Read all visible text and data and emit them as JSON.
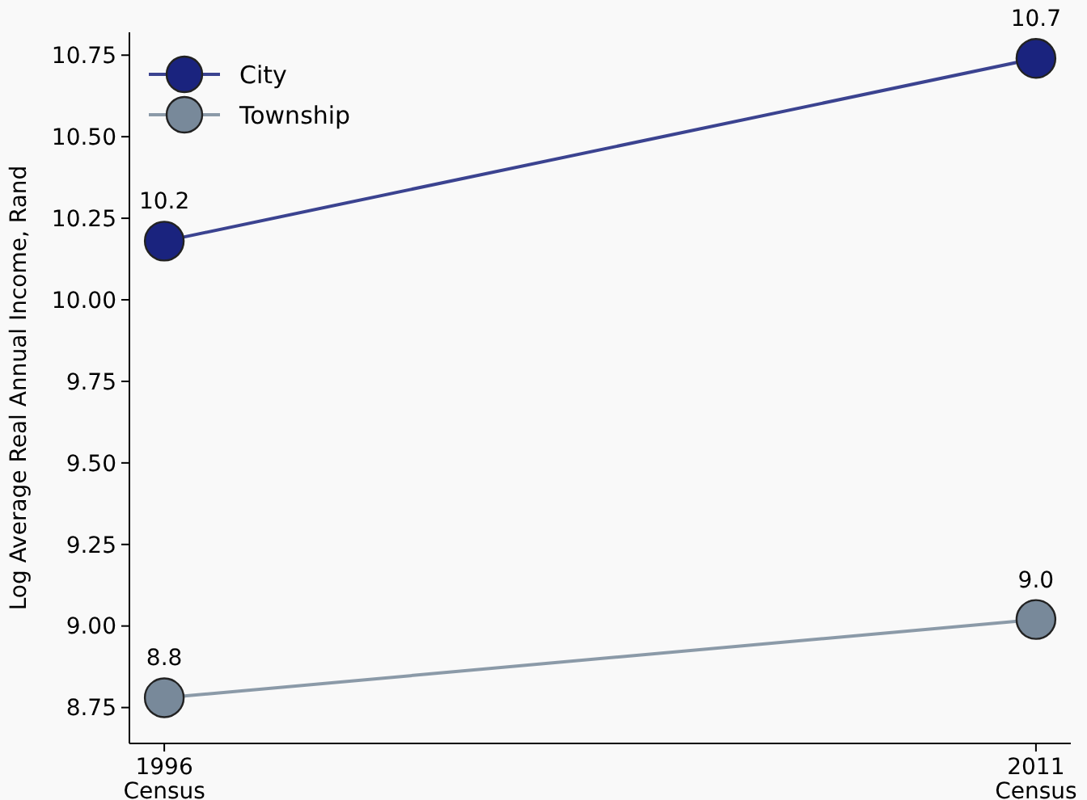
{
  "chart_data": {
    "type": "line",
    "ylabel": "Log Average Real Annual Income, Rand",
    "categories": [
      "1996\nCensus",
      "2011\nCensus"
    ],
    "series": [
      {
        "name": "City",
        "color": "#1a237e",
        "values": [
          10.18,
          10.74
        ],
        "value_labels": [
          "10.2",
          "10.7"
        ]
      },
      {
        "name": "Township",
        "color": "#78899a",
        "values": [
          8.78,
          9.02
        ],
        "value_labels": [
          "8.8",
          "9.0"
        ]
      }
    ],
    "ylim": [
      8.64,
      10.82
    ],
    "yticks": [
      {
        "value": 8.75,
        "label": "8.75"
      },
      {
        "value": 9,
        "label": "9.00"
      },
      {
        "value": 9.25,
        "label": "9.25"
      },
      {
        "value": 9.5,
        "label": "9.50"
      },
      {
        "value": 9.75,
        "label": "9.75"
      },
      {
        "value": 10,
        "label": "10.00"
      },
      {
        "value": 10.25,
        "label": "10.25"
      },
      {
        "value": 10.5,
        "label": "10.50"
      },
      {
        "value": 10.75,
        "label": "10.75"
      }
    ],
    "grid": false,
    "legend": "top left",
    "marker": "circle",
    "line_style": "solid"
  }
}
